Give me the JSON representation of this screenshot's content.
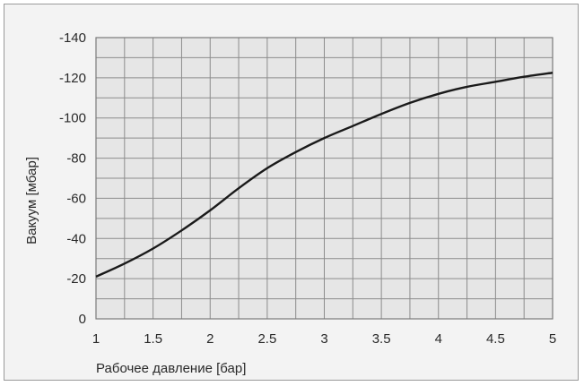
{
  "chart_data": {
    "type": "line",
    "xlabel": "Рабочее давление [бар]",
    "ylabel": "Вакуум [мбар]",
    "xlim": [
      1,
      5
    ],
    "ylim": [
      0,
      -140
    ],
    "x_ticks": [
      "1",
      "1.5",
      "2",
      "2.5",
      "3",
      "3.5",
      "4",
      "4.5",
      "5"
    ],
    "y_ticks": [
      "0",
      "-20",
      "-40",
      "-60",
      "-80",
      "-100",
      "-120",
      "-140"
    ],
    "grid": true,
    "series": [
      {
        "x": [
          1,
          1.25,
          1.5,
          1.75,
          2,
          2.25,
          2.5,
          2.75,
          3,
          3.25,
          3.5,
          3.75,
          4,
          4.25,
          4.5,
          4.75,
          5
        ],
        "y": [
          -21,
          -27.5,
          -35,
          -44,
          -54,
          -65,
          -75,
          -83,
          -90,
          -96,
          -102,
          -107.5,
          -112,
          -115.5,
          -118,
          -120.5,
          -122.5
        ]
      }
    ],
    "colors": {
      "plot_bg": "#e6e6e6",
      "frame_bg": "#f3f3f3",
      "grid": "#8c8c8c",
      "line": "#1a1a1a"
    }
  }
}
